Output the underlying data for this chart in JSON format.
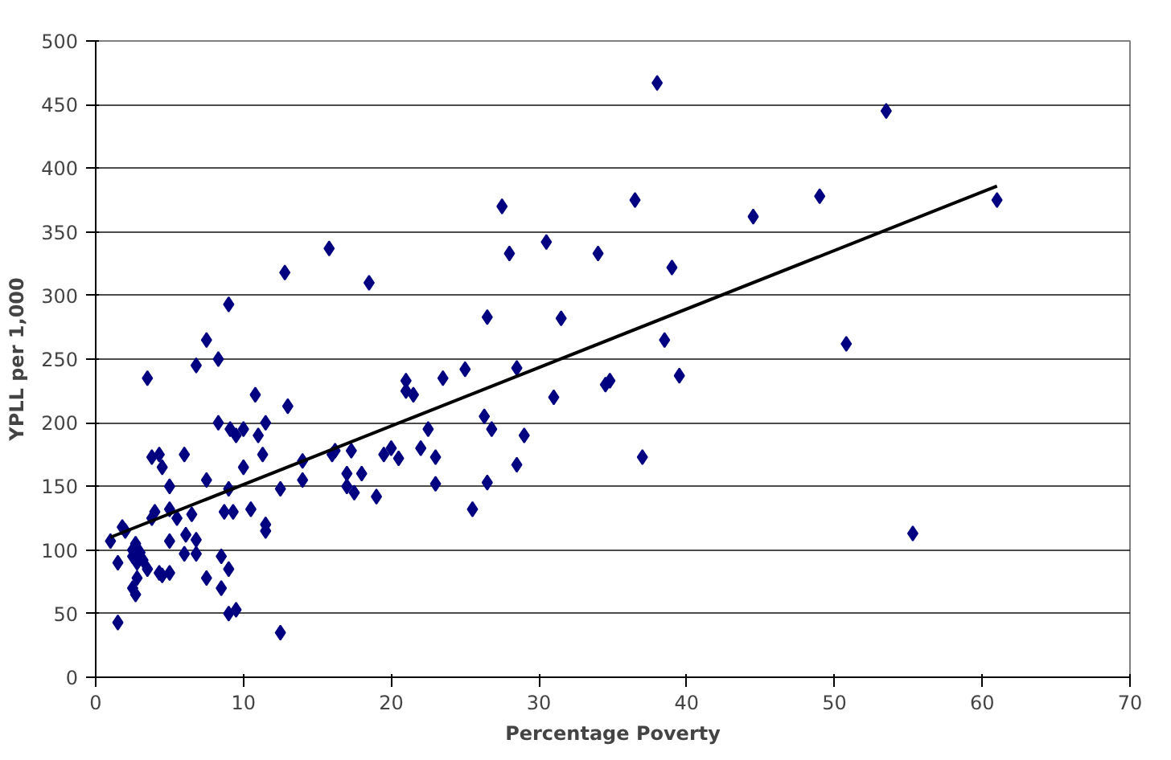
{
  "chart_data": {
    "type": "scatter",
    "xlabel": "Percentage Poverty",
    "ylabel": "YPLL per 1,000",
    "xlim": [
      0,
      70
    ],
    "xticks": [
      0,
      10,
      20,
      30,
      40,
      50,
      60,
      70
    ],
    "ylim": [
      0,
      500
    ],
    "yticks": [
      0,
      50,
      100,
      150,
      200,
      250,
      300,
      350,
      400,
      450,
      500
    ],
    "grid": "y",
    "marker": "diamond",
    "series": [
      {
        "color": "#000080",
        "x": [
          1,
          1.5,
          1.8,
          2,
          1.5,
          2.5,
          2.5,
          2.7,
          2.8,
          3,
          3.2,
          2.5,
          2.7,
          2.8,
          3.5,
          3.5,
          3.8,
          3.8,
          4,
          4.3,
          4.5,
          4.3,
          4.5,
          5,
          5,
          5,
          5,
          5.5,
          6,
          6,
          6.1,
          6.5,
          6.8,
          6.8,
          6.8,
          7.5,
          7.5,
          7.5,
          8.3,
          8.3,
          8.5,
          8.5,
          8.7,
          9,
          9,
          9,
          9,
          9.1,
          9.3,
          9.5,
          9.5,
          10,
          10,
          10.5,
          10.8,
          11,
          11.3,
          11.5,
          11.5,
          11.5,
          12.5,
          12.5,
          12.8,
          13,
          14,
          14,
          15.8,
          16,
          16.2,
          17,
          17,
          17.3,
          17.5,
          18,
          18.5,
          19,
          19.5,
          20,
          20.5,
          21,
          21,
          21.5,
          22,
          22.5,
          23,
          23,
          23.5,
          25,
          25.5,
          26.3,
          26.5,
          26.5,
          26.8,
          27.5,
          28,
          28.5,
          28.5,
          29,
          30.5,
          31,
          31.5,
          34,
          34.5,
          34.8,
          36.5,
          37,
          38,
          38.5,
          39,
          39.5,
          44.5,
          49,
          50.8,
          53.5,
          55.3,
          61
        ],
        "values": [
          107,
          90,
          118,
          115,
          43,
          95,
          100,
          105,
          90,
          98,
          92,
          70,
          65,
          78,
          85,
          235,
          125,
          173,
          130,
          175,
          165,
          82,
          80,
          107,
          150,
          132,
          82,
          125,
          175,
          97,
          112,
          128,
          108,
          97,
          245,
          265,
          155,
          78,
          250,
          200,
          70,
          95,
          130,
          50,
          85,
          293,
          148,
          195,
          130,
          190,
          53,
          195,
          165,
          132,
          222,
          190,
          175,
          200,
          120,
          115,
          148,
          35,
          318,
          213,
          170,
          155,
          337,
          175,
          178,
          150,
          160,
          178,
          145,
          160,
          310,
          142,
          175,
          180,
          172,
          233,
          225,
          222,
          180,
          195,
          152,
          173,
          235,
          242,
          132,
          205,
          283,
          153,
          195,
          370,
          333,
          243,
          167,
          190,
          342,
          220,
          282,
          333,
          230,
          233,
          375,
          173,
          467,
          265,
          322,
          237,
          362,
          378,
          262,
          445,
          113,
          375
        ]
      },
      {
        "type": "line",
        "color": "#000000",
        "marker": "none",
        "line_style": "solid",
        "x": [
          1,
          61
        ],
        "values": [
          110,
          386
        ]
      }
    ]
  }
}
